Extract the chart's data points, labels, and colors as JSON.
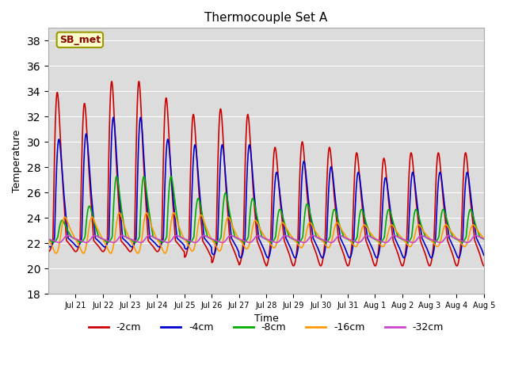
{
  "title": "Thermocouple Set A",
  "xlabel": "Time",
  "ylabel": "Temperature",
  "ylim": [
    18,
    39
  ],
  "yticks": [
    18,
    20,
    22,
    24,
    26,
    28,
    30,
    32,
    34,
    36,
    38
  ],
  "bg_color": "#dcdcdc",
  "annotation_text": "SB_met",
  "annotation_bg": "#ffffcc",
  "annotation_border": "#999900",
  "annotation_text_color": "#880000",
  "series_order": [
    "-2cm",
    "-4cm",
    "-8cm",
    "-16cm",
    "-32cm"
  ],
  "series": {
    "-2cm": {
      "color": "#cc0000",
      "lw": 1.2
    },
    "-4cm": {
      "color": "#0000cc",
      "lw": 1.2
    },
    "-8cm": {
      "color": "#00aa00",
      "lw": 1.2
    },
    "-16cm": {
      "color": "#ff9900",
      "lw": 1.2
    },
    "-32cm": {
      "color": "#cc44cc",
      "lw": 1.2
    }
  },
  "n_days": 16,
  "n_points_per_day": 144,
  "base_temp": 22.2,
  "peak_amplitudes": {
    "-2cm": [
      13.5,
      12.5,
      14.5,
      14.5,
      13.0,
      11.5,
      12.0,
      11.5,
      8.5,
      9.0,
      8.5,
      8.0,
      7.5,
      8.0,
      8.0,
      8.0
    ],
    "-4cm": [
      9.0,
      9.5,
      11.0,
      11.0,
      9.0,
      8.5,
      8.5,
      8.5,
      6.0,
      7.0,
      6.5,
      6.0,
      5.5,
      6.0,
      6.0,
      6.0
    ],
    "-8cm": [
      1.5,
      2.8,
      5.5,
      5.5,
      5.5,
      3.5,
      4.0,
      3.5,
      2.5,
      3.0,
      2.5,
      2.5,
      2.5,
      2.5,
      2.5,
      2.5
    ],
    "-16cm": [
      1.8,
      1.8,
      2.2,
      2.2,
      2.2,
      2.0,
      1.8,
      1.5,
      1.3,
      1.3,
      1.3,
      1.1,
      1.1,
      1.1,
      1.1,
      1.1
    ],
    "-32cm": [
      0.35,
      0.35,
      0.35,
      0.35,
      0.35,
      0.35,
      0.35,
      0.35,
      0.35,
      0.35,
      0.35,
      0.35,
      0.35,
      0.35,
      0.35,
      0.35
    ]
  },
  "trough_amplitudes": {
    "-2cm": [
      1.0,
      1.0,
      1.0,
      1.0,
      1.0,
      1.5,
      2.0,
      2.2,
      2.3,
      2.3,
      2.3,
      2.3,
      2.3,
      2.3,
      2.3,
      2.3
    ],
    "-4cm": [
      0.8,
      0.8,
      0.8,
      0.8,
      0.8,
      1.0,
      1.5,
      1.8,
      1.8,
      1.8,
      1.8,
      1.8,
      1.8,
      1.8,
      1.8,
      1.8
    ],
    "-8cm": [
      0.5,
      0.5,
      0.5,
      0.5,
      0.5,
      0.5,
      0.5,
      0.5,
      0.5,
      0.5,
      0.5,
      0.5,
      0.5,
      0.5,
      0.5,
      0.5
    ],
    "-16cm": [
      1.5,
      1.5,
      1.5,
      1.5,
      1.5,
      1.3,
      1.3,
      1.1,
      1.0,
      1.0,
      1.0,
      0.9,
      0.9,
      0.9,
      0.9,
      0.9
    ],
    "-32cm": [
      0.3,
      0.3,
      0.3,
      0.3,
      0.3,
      0.3,
      0.3,
      0.3,
      0.3,
      0.3,
      0.3,
      0.3,
      0.3,
      0.3,
      0.3,
      0.3
    ]
  },
  "phase_offsets": {
    "-2cm": 0.0,
    "-4cm": 0.06,
    "-8cm": 0.18,
    "-16cm": 0.28,
    "-32cm": 0.38
  },
  "mean_offsets": {
    "-2cm": 0.0,
    "-4cm": 0.2,
    "-8cm": 0.3,
    "-16cm": 0.3,
    "-32cm": 0.1
  },
  "x_tick_labels": [
    "Jul 21",
    "Jul 22",
    "Jul 23",
    "Jul 24",
    "Jul 25",
    "Jul 26",
    "Jul 27",
    "Jul 28",
    "Jul 29",
    "Jul 30",
    "Jul 31",
    "Aug 1",
    "Aug 2",
    "Aug 3",
    "Aug 4",
    "Aug 5"
  ]
}
